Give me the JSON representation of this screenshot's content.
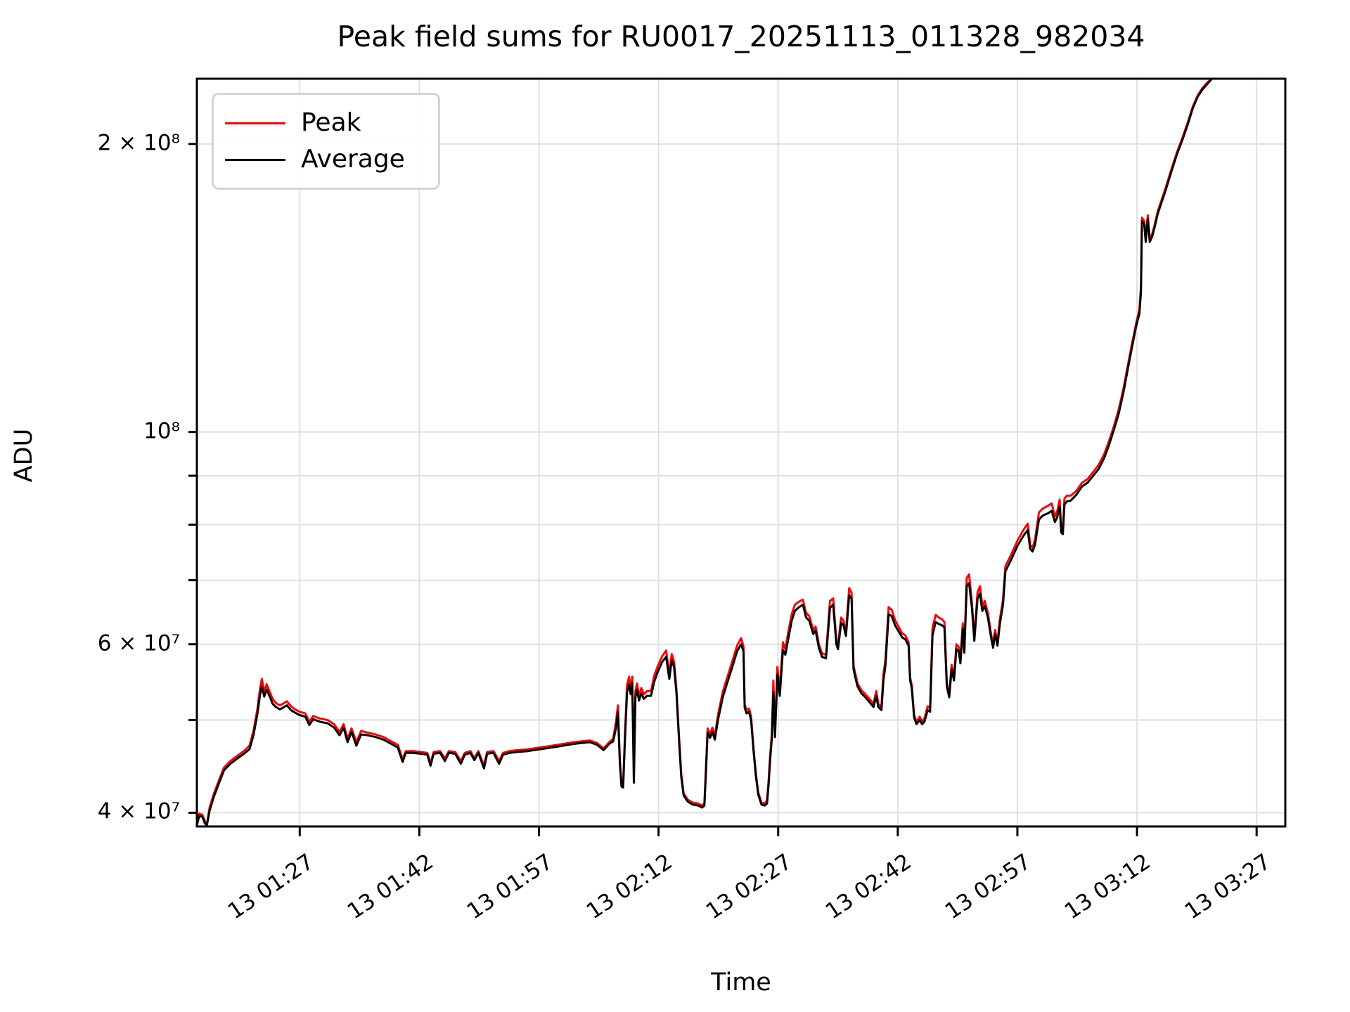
{
  "title": "Peak field sums for RU0017_20251113_011328_982034",
  "legend": {
    "items": [
      {
        "label": "Peak",
        "color": "#ff0000"
      },
      {
        "label": "Average",
        "color": "#000000"
      }
    ]
  },
  "colors": {
    "grid": "#e0e0e0",
    "spine": "#000000",
    "background": "#ffffff",
    "peak_line": "#ff0000",
    "average_line": "#000000"
  },
  "chart_data": {
    "type": "line",
    "title": "Peak field sums for RU0017_20251113_011328_982034",
    "xlabel": "Time",
    "ylabel": "ADU",
    "yscale": "log",
    "grid": "both",
    "legend_position": "upper left",
    "xlim_day_minutes": [
      74.1,
      210.6
    ],
    "ylim": [
      38700000,
      234000000
    ],
    "x_ticks": [
      {
        "t": 87,
        "label": "13 01:27"
      },
      {
        "t": 102,
        "label": "13 01:42"
      },
      {
        "t": 117,
        "label": "13 01:57"
      },
      {
        "t": 132,
        "label": "13 02:12"
      },
      {
        "t": 147,
        "label": "13 02:27"
      },
      {
        "t": 162,
        "label": "13 02:42"
      },
      {
        "t": 177,
        "label": "13 02:57"
      },
      {
        "t": 192,
        "label": "13 03:12"
      },
      {
        "t": 207,
        "label": "13 03:27"
      }
    ],
    "y_ticks": [
      {
        "value": 200000000,
        "label": "2 × 10⁸"
      },
      {
        "value": 100000000,
        "label": "10⁸"
      },
      {
        "value": 60000000,
        "label": "6 × 10⁷"
      },
      {
        "value": 40000000,
        "label": "4 × 10⁷"
      }
    ],
    "y_gridlines": [
      40000000,
      50000000,
      60000000,
      70000000,
      80000000,
      90000000,
      100000000,
      200000000
    ],
    "series": [
      {
        "name": "Peak",
        "color": "#ff0000",
        "point_column": 2
      },
      {
        "name": "Average",
        "color": "#000000",
        "point_column": 1
      }
    ],
    "values_scale": 10000000,
    "points_format": [
      "t_day_minutes",
      "average_e7",
      "peak_e7"
    ],
    "points": [
      [
        74.1,
        3.88,
        3.9
      ],
      [
        74.4,
        3.97,
        3.99
      ],
      [
        74.8,
        3.96,
        3.98
      ],
      [
        75.1,
        3.9,
        3.92
      ],
      [
        75.35,
        3.88,
        3.89
      ],
      [
        75.7,
        4.02,
        4.05
      ],
      [
        76.2,
        4.15,
        4.18
      ],
      [
        76.8,
        4.28,
        4.31
      ],
      [
        77.5,
        4.43,
        4.46
      ],
      [
        78.3,
        4.5,
        4.53
      ],
      [
        79.2,
        4.56,
        4.59
      ],
      [
        80.0,
        4.61,
        4.64
      ],
      [
        80.7,
        4.66,
        4.7
      ],
      [
        81.2,
        4.82,
        4.87
      ],
      [
        81.7,
        5.08,
        5.14
      ],
      [
        82.0,
        5.3,
        5.38
      ],
      [
        82.25,
        5.42,
        5.52
      ],
      [
        82.55,
        5.29,
        5.35
      ],
      [
        82.85,
        5.38,
        5.45
      ],
      [
        83.2,
        5.3,
        5.36
      ],
      [
        83.6,
        5.2,
        5.26
      ],
      [
        84.0,
        5.16,
        5.21
      ],
      [
        84.5,
        5.13,
        5.18
      ],
      [
        84.9,
        5.15,
        5.2
      ],
      [
        85.4,
        5.18,
        5.23
      ],
      [
        85.9,
        5.12,
        5.17
      ],
      [
        86.4,
        5.09,
        5.13
      ],
      [
        87.0,
        5.06,
        5.1
      ],
      [
        87.7,
        5.04,
        5.08
      ],
      [
        88.2,
        4.94,
        4.98
      ],
      [
        88.7,
        5.01,
        5.05
      ],
      [
        89.5,
        4.98,
        5.02
      ],
      [
        90.5,
        4.96,
        5.0
      ],
      [
        91.3,
        4.91,
        4.95
      ],
      [
        92.0,
        4.82,
        4.86
      ],
      [
        92.5,
        4.91,
        4.95
      ],
      [
        93.0,
        4.74,
        4.78
      ],
      [
        93.5,
        4.86,
        4.9
      ],
      [
        94.1,
        4.7,
        4.74
      ],
      [
        94.7,
        4.83,
        4.87
      ],
      [
        95.5,
        4.82,
        4.85
      ],
      [
        96.5,
        4.8,
        4.83
      ],
      [
        97.5,
        4.77,
        4.8
      ],
      [
        98.5,
        4.72,
        4.75
      ],
      [
        99.3,
        4.68,
        4.71
      ],
      [
        99.9,
        4.52,
        4.55
      ],
      [
        100.3,
        4.62,
        4.64
      ],
      [
        101.2,
        4.62,
        4.64
      ],
      [
        102.2,
        4.61,
        4.63
      ],
      [
        103.0,
        4.6,
        4.62
      ],
      [
        103.4,
        4.48,
        4.51
      ],
      [
        103.8,
        4.61,
        4.63
      ],
      [
        104.6,
        4.62,
        4.64
      ],
      [
        105.2,
        4.53,
        4.56
      ],
      [
        105.7,
        4.62,
        4.64
      ],
      [
        106.5,
        4.61,
        4.63
      ],
      [
        107.2,
        4.5,
        4.53
      ],
      [
        107.7,
        4.6,
        4.62
      ],
      [
        108.4,
        4.62,
        4.64
      ],
      [
        108.9,
        4.54,
        4.56
      ],
      [
        109.4,
        4.62,
        4.64
      ],
      [
        110.1,
        4.45,
        4.48
      ],
      [
        110.5,
        4.61,
        4.63
      ],
      [
        111.3,
        4.62,
        4.64
      ],
      [
        112.0,
        4.5,
        4.53
      ],
      [
        112.5,
        4.6,
        4.62
      ],
      [
        113.3,
        4.62,
        4.64
      ],
      [
        114.3,
        4.63,
        4.65
      ],
      [
        115.6,
        4.64,
        4.66
      ],
      [
        117.1,
        4.66,
        4.68
      ],
      [
        118.6,
        4.68,
        4.7
      ],
      [
        120.0,
        4.7,
        4.72
      ],
      [
        121.3,
        4.72,
        4.74
      ],
      [
        122.3,
        4.73,
        4.75
      ],
      [
        123.4,
        4.74,
        4.76
      ],
      [
        124.3,
        4.71,
        4.73
      ],
      [
        125.1,
        4.65,
        4.67
      ],
      [
        125.8,
        4.72,
        4.74
      ],
      [
        126.3,
        4.75,
        4.78
      ],
      [
        126.65,
        4.9,
        4.97
      ],
      [
        126.9,
        5.1,
        5.18
      ],
      [
        127.15,
        4.5,
        4.54
      ],
      [
        127.35,
        4.26,
        4.29
      ],
      [
        127.55,
        4.25,
        4.27
      ],
      [
        127.8,
        4.8,
        4.86
      ],
      [
        128.05,
        5.35,
        5.44
      ],
      [
        128.3,
        5.45,
        5.55
      ],
      [
        128.5,
        5.32,
        5.38
      ],
      [
        128.7,
        5.47,
        5.55
      ],
      [
        128.9,
        4.3,
        4.52
      ],
      [
        129.1,
        5.28,
        5.36
      ],
      [
        129.3,
        5.38,
        5.46
      ],
      [
        129.55,
        5.24,
        5.3
      ],
      [
        129.85,
        5.33,
        5.4
      ],
      [
        130.15,
        5.26,
        5.32
      ],
      [
        130.55,
        5.3,
        5.36
      ],
      [
        131.05,
        5.3,
        5.36
      ],
      [
        131.45,
        5.48,
        5.56
      ],
      [
        131.85,
        5.6,
        5.68
      ],
      [
        132.45,
        5.75,
        5.83
      ],
      [
        132.95,
        5.82,
        5.91
      ],
      [
        133.35,
        5.52,
        5.58
      ],
      [
        133.65,
        5.77,
        5.86
      ],
      [
        133.95,
        5.68,
        5.75
      ],
      [
        134.25,
        5.33,
        5.38
      ],
      [
        134.55,
        4.8,
        4.84
      ],
      [
        134.85,
        4.36,
        4.39
      ],
      [
        135.15,
        4.17,
        4.19
      ],
      [
        135.65,
        4.11,
        4.13
      ],
      [
        136.25,
        4.08,
        4.1
      ],
      [
        136.95,
        4.07,
        4.09
      ],
      [
        137.45,
        4.05,
        4.07
      ],
      [
        137.75,
        4.07,
        4.09
      ],
      [
        137.95,
        4.43,
        4.47
      ],
      [
        138.15,
        4.85,
        4.9
      ],
      [
        138.45,
        4.79,
        4.83
      ],
      [
        138.75,
        4.86,
        4.91
      ],
      [
        139.05,
        4.77,
        4.81
      ],
      [
        139.45,
        5.0,
        5.06
      ],
      [
        140.05,
        5.28,
        5.35
      ],
      [
        140.65,
        5.48,
        5.55
      ],
      [
        141.25,
        5.68,
        5.76
      ],
      [
        141.85,
        5.9,
        5.98
      ],
      [
        142.35,
        6.0,
        6.09
      ],
      [
        142.65,
        5.9,
        5.97
      ],
      [
        142.8,
        5.15,
        5.19
      ],
      [
        143.05,
        5.08,
        5.12
      ],
      [
        143.35,
        5.1,
        5.14
      ],
      [
        143.6,
        5.0,
        5.04
      ],
      [
        143.9,
        4.65,
        4.68
      ],
      [
        144.2,
        4.37,
        4.4
      ],
      [
        144.5,
        4.18,
        4.2
      ],
      [
        144.9,
        4.08,
        4.1
      ],
      [
        145.3,
        4.07,
        4.09
      ],
      [
        145.6,
        4.09,
        4.12
      ],
      [
        145.8,
        4.28,
        4.32
      ],
      [
        146.0,
        4.55,
        4.6
      ],
      [
        146.2,
        4.78,
        4.84
      ],
      [
        146.4,
        5.35,
        5.5
      ],
      [
        146.6,
        4.8,
        4.86
      ],
      [
        146.9,
        5.58,
        5.68
      ],
      [
        147.2,
        5.3,
        5.37
      ],
      [
        147.6,
        5.92,
        6.03
      ],
      [
        147.9,
        5.85,
        5.93
      ],
      [
        148.3,
        6.1,
        6.2
      ],
      [
        148.7,
        6.35,
        6.45
      ],
      [
        149.1,
        6.5,
        6.6
      ],
      [
        149.5,
        6.55,
        6.64
      ],
      [
        150.1,
        6.6,
        6.68
      ],
      [
        150.5,
        6.4,
        6.47
      ],
      [
        150.9,
        6.35,
        6.42
      ],
      [
        151.4,
        6.15,
        6.21
      ],
      [
        151.7,
        6.2,
        6.26
      ],
      [
        152.1,
        5.95,
        6.0
      ],
      [
        152.5,
        5.82,
        5.87
      ],
      [
        153.0,
        5.8,
        5.85
      ],
      [
        153.5,
        6.55,
        6.66
      ],
      [
        153.9,
        6.6,
        6.7
      ],
      [
        154.3,
        6.0,
        6.05
      ],
      [
        154.5,
        5.93,
        5.98
      ],
      [
        154.9,
        6.32,
        6.4
      ],
      [
        155.2,
        6.28,
        6.35
      ],
      [
        155.5,
        6.12,
        6.17
      ],
      [
        155.9,
        6.75,
        6.87
      ],
      [
        156.2,
        6.7,
        6.79
      ],
      [
        156.45,
        5.65,
        5.7
      ],
      [
        156.65,
        5.55,
        5.6
      ],
      [
        156.95,
        5.42,
        5.46
      ],
      [
        157.45,
        5.33,
        5.37
      ],
      [
        157.95,
        5.28,
        5.32
      ],
      [
        158.45,
        5.22,
        5.26
      ],
      [
        158.95,
        5.16,
        5.2
      ],
      [
        159.3,
        5.3,
        5.36
      ],
      [
        159.55,
        5.16,
        5.2
      ],
      [
        159.95,
        5.12,
        5.16
      ],
      [
        160.2,
        5.5,
        5.58
      ],
      [
        160.45,
        5.7,
        5.78
      ],
      [
        160.85,
        6.45,
        6.56
      ],
      [
        161.25,
        6.42,
        6.52
      ],
      [
        161.65,
        6.28,
        6.36
      ],
      [
        162.05,
        6.2,
        6.27
      ],
      [
        162.55,
        6.1,
        6.16
      ],
      [
        162.95,
        6.07,
        6.13
      ],
      [
        163.35,
        5.98,
        6.03
      ],
      [
        163.55,
        5.5,
        5.54
      ],
      [
        163.75,
        5.4,
        5.44
      ],
      [
        164.05,
        5.03,
        5.06
      ],
      [
        164.35,
        4.95,
        4.98
      ],
      [
        164.75,
        5.0,
        5.04
      ],
      [
        165.05,
        4.95,
        4.98
      ],
      [
        165.35,
        4.98,
        5.02
      ],
      [
        165.75,
        5.12,
        5.17
      ],
      [
        166.05,
        5.1,
        5.14
      ],
      [
        166.35,
        6.13,
        6.24
      ],
      [
        166.75,
        6.33,
        6.44
      ],
      [
        167.15,
        6.3,
        6.4
      ],
      [
        167.55,
        6.28,
        6.37
      ],
      [
        167.85,
        6.25,
        6.33
      ],
      [
        168.15,
        5.42,
        5.46
      ],
      [
        168.45,
        5.28,
        5.32
      ],
      [
        168.75,
        5.65,
        5.71
      ],
      [
        169.05,
        5.5,
        5.55
      ],
      [
        169.35,
        5.93,
        6.0
      ],
      [
        169.65,
        5.9,
        5.96
      ],
      [
        169.85,
        5.73,
        5.78
      ],
      [
        170.15,
        6.23,
        6.31
      ],
      [
        170.35,
        5.88,
        5.93
      ],
      [
        170.65,
        6.9,
        7.04
      ],
      [
        170.95,
        6.95,
        7.1
      ],
      [
        171.3,
        6.55,
        6.62
      ],
      [
        171.6,
        6.05,
        6.1
      ],
      [
        172.0,
        6.7,
        6.8
      ],
      [
        172.3,
        6.78,
        6.9
      ],
      [
        172.6,
        6.5,
        6.58
      ],
      [
        172.9,
        6.58,
        6.66
      ],
      [
        173.3,
        6.4,
        6.47
      ],
      [
        173.7,
        6.1,
        6.15
      ],
      [
        173.95,
        5.95,
        6.0
      ],
      [
        174.2,
        6.15,
        6.21
      ],
      [
        174.5,
        5.98,
        6.03
      ],
      [
        174.8,
        6.3,
        6.37
      ],
      [
        175.2,
        6.6,
        6.68
      ],
      [
        175.5,
        7.15,
        7.24
      ],
      [
        176.2,
        7.35,
        7.44
      ],
      [
        177.0,
        7.6,
        7.7
      ],
      [
        177.8,
        7.8,
        7.91
      ],
      [
        178.3,
        7.9,
        8.02
      ],
      [
        178.6,
        7.55,
        7.62
      ],
      [
        178.9,
        7.5,
        7.57
      ],
      [
        179.2,
        7.62,
        7.71
      ],
      [
        179.7,
        8.1,
        8.24
      ],
      [
        180.2,
        8.18,
        8.32
      ],
      [
        180.8,
        8.22,
        8.37
      ],
      [
        181.3,
        8.27,
        8.42
      ],
      [
        181.7,
        8.05,
        8.16
      ],
      [
        182.0,
        8.15,
        8.27
      ],
      [
        182.3,
        8.36,
        8.5
      ],
      [
        182.5,
        7.85,
        7.92
      ],
      [
        182.7,
        7.82,
        7.89
      ],
      [
        182.9,
        8.4,
        8.52
      ],
      [
        183.2,
        8.46,
        8.58
      ],
      [
        183.7,
        8.48,
        8.58
      ],
      [
        184.4,
        8.6,
        8.68
      ],
      [
        185.1,
        8.77,
        8.85
      ],
      [
        185.8,
        8.85,
        8.93
      ],
      [
        186.5,
        9.0,
        9.08
      ],
      [
        187.2,
        9.15,
        9.24
      ],
      [
        187.9,
        9.4,
        9.49
      ],
      [
        188.5,
        9.7,
        9.79
      ],
      [
        189.1,
        10.05,
        10.14
      ],
      [
        189.7,
        10.45,
        10.55
      ],
      [
        190.3,
        11.0,
        11.1
      ],
      [
        190.9,
        11.7,
        11.8
      ],
      [
        191.4,
        12.3,
        12.4
      ],
      [
        191.9,
        12.9,
        13.0
      ],
      [
        192.3,
        13.3,
        13.42
      ],
      [
        192.5,
        14.0,
        14.2
      ],
      [
        192.62,
        16.6,
        16.75
      ],
      [
        192.9,
        16.5,
        16.62
      ],
      [
        193.1,
        15.8,
        15.9
      ],
      [
        193.35,
        16.7,
        16.85
      ],
      [
        193.6,
        15.8,
        15.92
      ],
      [
        193.9,
        16.0,
        16.1
      ],
      [
        194.2,
        16.35,
        16.45
      ],
      [
        194.6,
        16.9,
        17.0
      ],
      [
        195.0,
        17.3,
        17.4
      ],
      [
        195.6,
        17.9,
        18.0
      ],
      [
        196.3,
        18.7,
        18.8
      ],
      [
        197.0,
        19.5,
        19.6
      ],
      [
        197.7,
        20.2,
        20.3
      ],
      [
        198.4,
        21.0,
        21.1
      ],
      [
        199.0,
        21.8,
        21.88
      ],
      [
        199.6,
        22.4,
        22.48
      ],
      [
        200.2,
        22.8,
        22.88
      ],
      [
        200.8,
        23.1,
        23.18
      ],
      [
        201.4,
        23.42,
        23.48
      ],
      [
        202.3,
        23.45,
        23.5
      ],
      [
        203.4,
        23.45,
        23.5
      ]
    ]
  }
}
